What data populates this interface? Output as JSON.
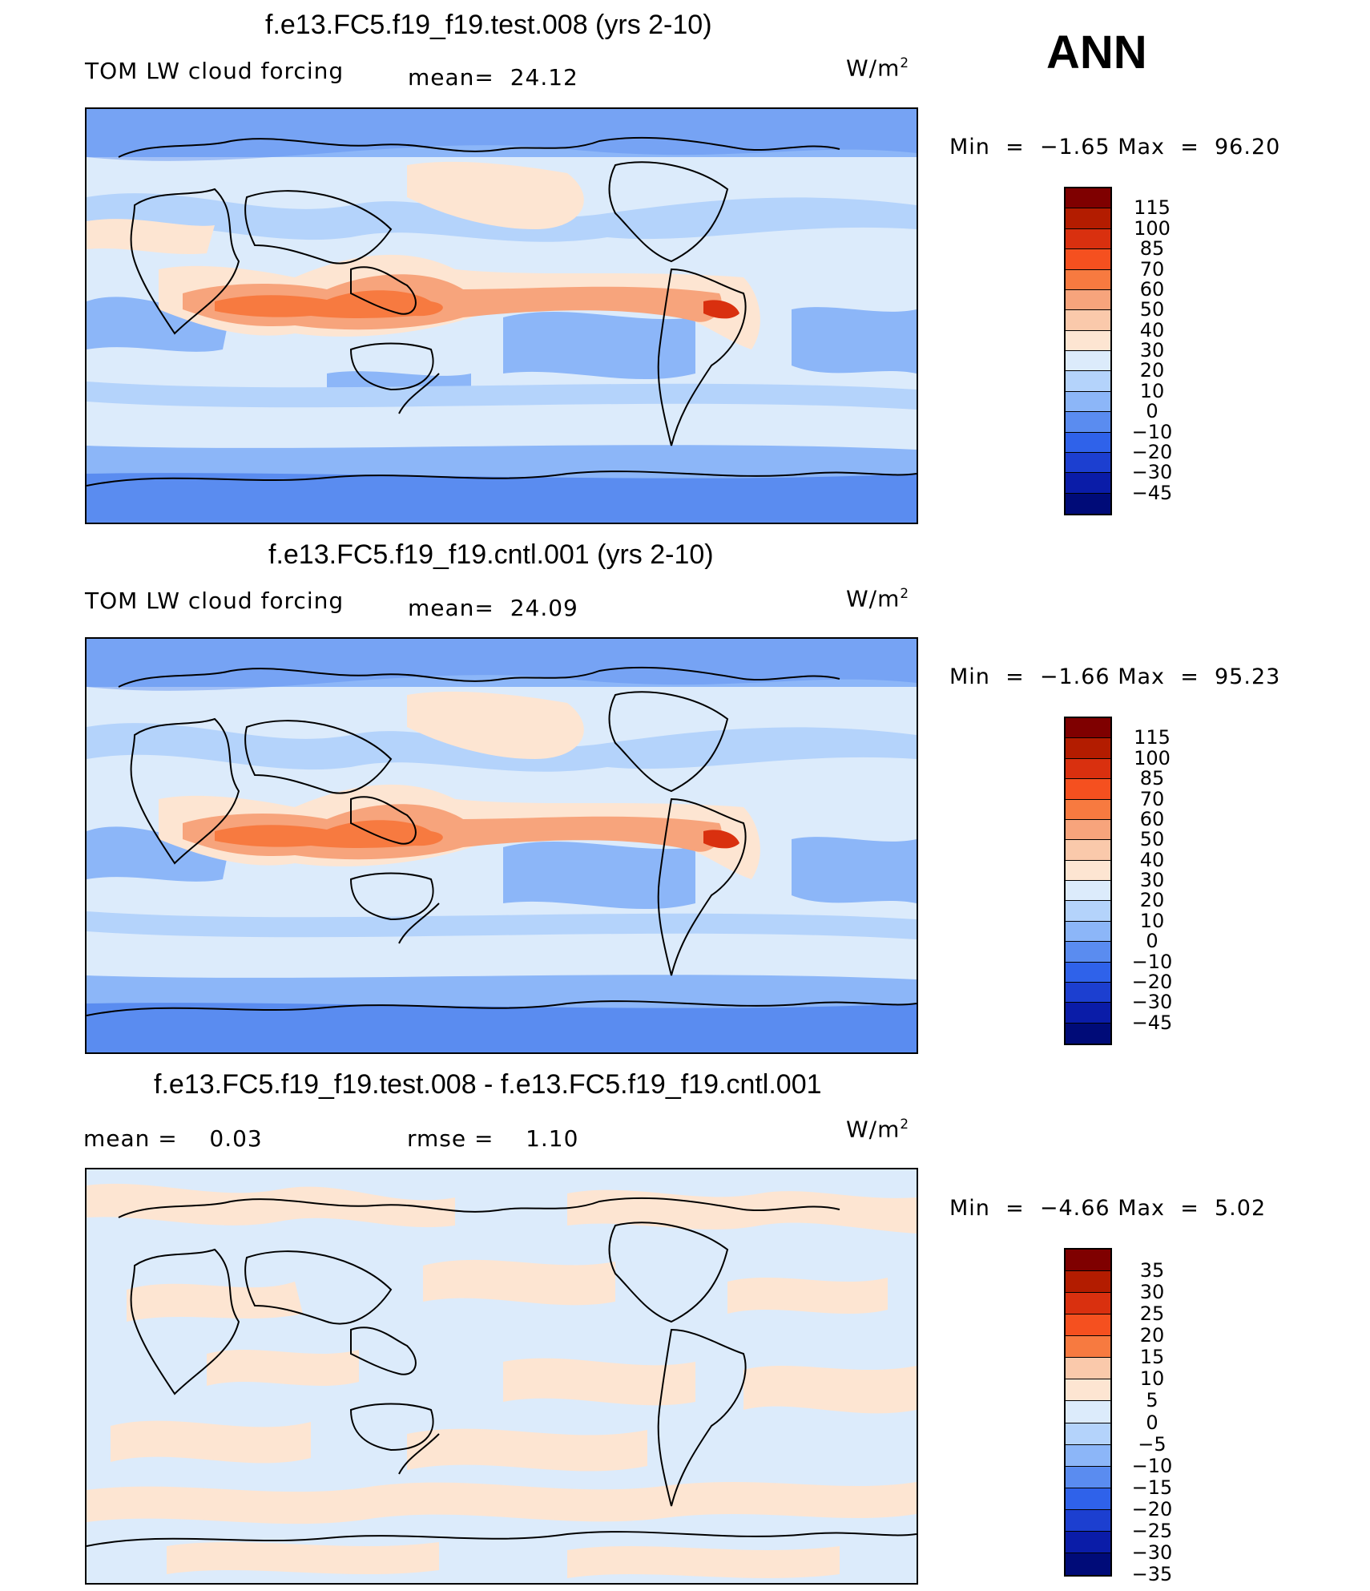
{
  "season": "ANN",
  "units_base": "W/m",
  "units_exp": "2",
  "panels": [
    {
      "title": "f.e13.FC5.f19_f19.test.008 (yrs 2-10)",
      "variable": "TOM LW cloud forcing",
      "stat_label": "mean=",
      "stat_value": "24.12",
      "min_label": "Min  =",
      "min_value": "−1.65",
      "max_label": "Max  =",
      "max_value": "96.20",
      "levels": [
        "115",
        "100",
        "85",
        "70",
        "60",
        "50",
        "40",
        "30",
        "20",
        "10",
        "0",
        "−10",
        "−20",
        "−30",
        "−45"
      ]
    },
    {
      "title": "f.e13.FC5.f19_f19.cntl.001 (yrs 2-10)",
      "variable": "TOM LW cloud forcing",
      "stat_label": "mean=",
      "stat_value": "24.09",
      "min_label": "Min  =",
      "min_value": "−1.66",
      "max_label": "Max  =",
      "max_value": "95.23",
      "levels": [
        "115",
        "100",
        "85",
        "70",
        "60",
        "50",
        "40",
        "30",
        "20",
        "10",
        "0",
        "−10",
        "−20",
        "−30",
        "−45"
      ]
    },
    {
      "title": "f.e13.FC5.f19_f19.test.008 - f.e13.FC5.f19_f19.cntl.001",
      "mean_label": "mean  =",
      "mean_value": "0.03",
      "rmse_label": "rmse  =",
      "rmse_value": "1.10",
      "min_label": "Min  =",
      "min_value": "−4.66",
      "max_label": "Max  =",
      "max_value": "5.02",
      "levels": [
        "35",
        "30",
        "25",
        "20",
        "15",
        "10",
        "5",
        "0",
        "−5",
        "−10",
        "−15",
        "−20",
        "−25",
        "−30",
        "−35"
      ]
    }
  ],
  "colors": {
    "scale_full": [
      "#7f0000",
      "#b31c00",
      "#d9300f",
      "#f5501f",
      "#f77a40",
      "#f7a47c",
      "#fac9ab",
      "#fde5d2",
      "#dcebfb",
      "#b4d3fb",
      "#8cb6f8",
      "#5a8cf0",
      "#2f62ea",
      "#1c3fd0",
      "#0a1ca8",
      "#000b78"
    ],
    "diff": [
      "#7f0000",
      "#b31c00",
      "#d9300f",
      "#f5501f",
      "#f77a40",
      "#fac9ab",
      "#fde5d2",
      "#dcebfb",
      "#b4d3fb",
      "#8cb6f8",
      "#5a8cf0",
      "#2f62ea",
      "#1c3fd0",
      "#0a1ca8",
      "#000b78"
    ]
  }
}
